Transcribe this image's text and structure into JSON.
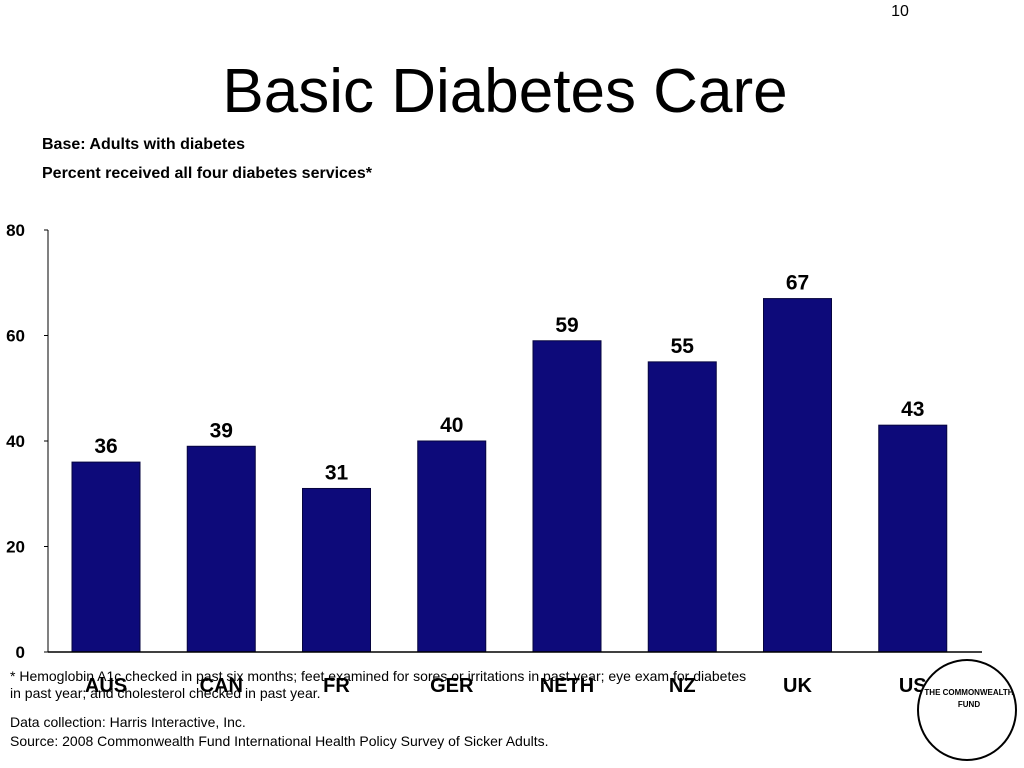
{
  "slide": {
    "number": "10",
    "title": "Basic Diabetes Care",
    "subtitle_base": "Base: Adults with diabetes",
    "subtitle_measure": "Percent received all four diabetes services*"
  },
  "footnote": "* Hemoglobin A1c checked in past six months; feet examined for sores or irritations in past year; eye exam for diabetes in past year; and cholesterol checked in past year.",
  "data_collection": "Data collection: Harris Interactive, Inc.",
  "source": "Source: 2008 Commonwealth Fund International Health Policy Survey of Sicker Adults.",
  "logo": {
    "text": "THE COMMONWEALTH FUND"
  },
  "chart_data": {
    "type": "bar",
    "title": "",
    "xlabel": "",
    "ylabel": "",
    "categories": [
      "AUS",
      "CAN",
      "FR",
      "GER",
      "NETH",
      "NZ",
      "UK",
      "US"
    ],
    "values": [
      36,
      39,
      31,
      40,
      59,
      55,
      67,
      43
    ],
    "data_labels": [
      "36",
      "39",
      "31",
      "40",
      "59",
      "55",
      "67",
      "43"
    ],
    "ylim": [
      0,
      80
    ],
    "yticks": [
      "0",
      "20",
      "40",
      "60",
      "80"
    ],
    "bar_color": "#0d0a7a",
    "grid": false,
    "legend": "none"
  }
}
